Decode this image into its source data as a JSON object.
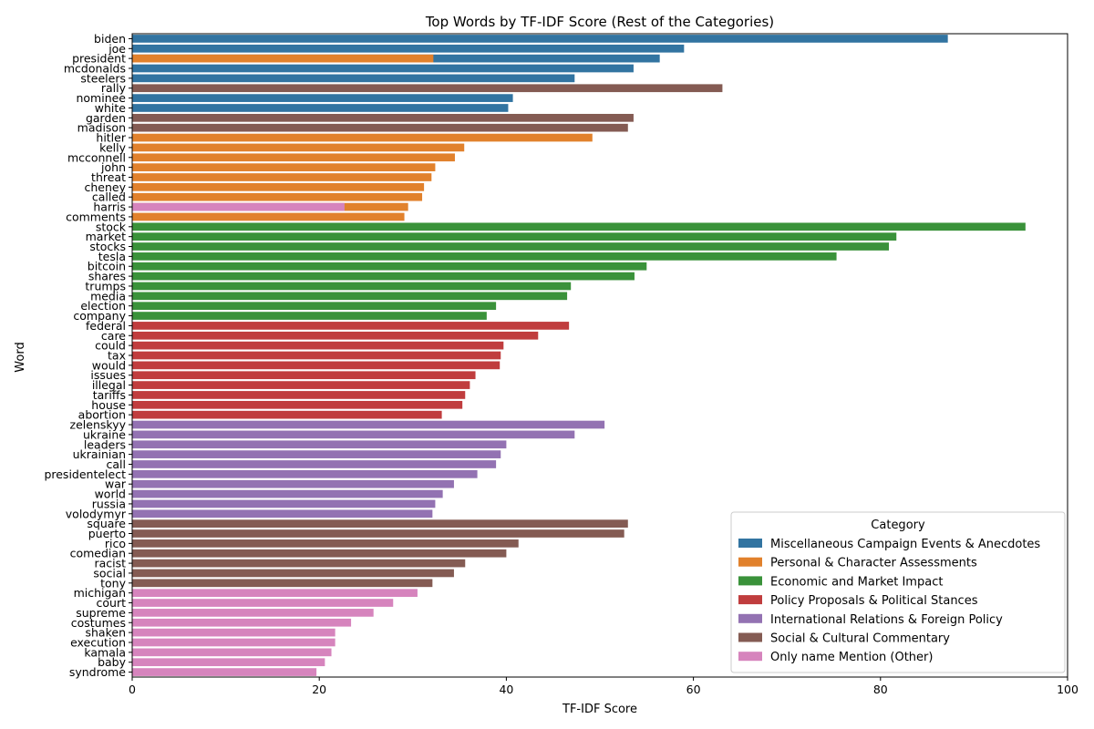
{
  "chart_data": {
    "type": "bar",
    "orientation": "horizontal",
    "title": "Top Words by TF-IDF Score (Rest of the Categories)",
    "xlabel": "TF-IDF Score",
    "ylabel": "Word",
    "xlim": [
      0,
      100
    ],
    "xticks": [
      0,
      20,
      40,
      60,
      80,
      100
    ],
    "grid": false,
    "legend": {
      "title": "Category",
      "placement": "lower-right",
      "entries": [
        {
          "name": "Miscellaneous Campaign Events & Anecdotes",
          "color": "#3274a1"
        },
        {
          "name": "Personal & Character Assessments",
          "color": "#e1812c"
        },
        {
          "name": "Economic and Market Impact",
          "color": "#3a923a"
        },
        {
          "name": "Policy Proposals & Political Stances",
          "color": "#c03d3e"
        },
        {
          "name": "International Relations & Foreign Policy",
          "color": "#9372b2"
        },
        {
          "name": "Social & Cultural Commentary",
          "color": "#845b53"
        },
        {
          "name": "Only name Mention (Other)",
          "color": "#d684bd"
        }
      ]
    },
    "categories": [
      "biden",
      "joe",
      "president",
      "mcdonalds",
      "steelers",
      "rally",
      "nominee",
      "white",
      "garden",
      "madison",
      "hitler",
      "kelly",
      "mcconnell",
      "john",
      "threat",
      "cheney",
      "called",
      "harris",
      "comments",
      "stock",
      "market",
      "stocks",
      "tesla",
      "bitcoin",
      "shares",
      "trumps",
      "media",
      "election",
      "company",
      "federal",
      "care",
      "could",
      "tax",
      "would",
      "issues",
      "illegal",
      "tariffs",
      "house",
      "abortion",
      "zelenskyy",
      "ukraine",
      "leaders",
      "ukrainian",
      "call",
      "presidentelect",
      "war",
      "world",
      "russia",
      "volodymyr",
      "square",
      "puerto",
      "rico",
      "comedian",
      "racist",
      "social",
      "tony",
      "michigan",
      "court",
      "supreme",
      "costumes",
      "shaken",
      "execution",
      "kamala",
      "baby",
      "syndrome"
    ],
    "bars": [
      {
        "word": "biden",
        "value": 87.2,
        "series": 0
      },
      {
        "word": "joe",
        "value": 59.0,
        "series": 0
      },
      {
        "word": "president",
        "value": 56.4,
        "series": 0
      },
      {
        "word": "president",
        "value": 32.2,
        "series": 1
      },
      {
        "word": "mcdonalds",
        "value": 53.6,
        "series": 0
      },
      {
        "word": "steelers",
        "value": 47.3,
        "series": 0
      },
      {
        "word": "rally",
        "value": 63.1,
        "series": 5
      },
      {
        "word": "nominee",
        "value": 40.7,
        "series": 0
      },
      {
        "word": "white",
        "value": 40.2,
        "series": 0
      },
      {
        "word": "garden",
        "value": 53.6,
        "series": 5
      },
      {
        "word": "madison",
        "value": 53.0,
        "series": 5
      },
      {
        "word": "hitler",
        "value": 49.2,
        "series": 1
      },
      {
        "word": "kelly",
        "value": 35.5,
        "series": 1
      },
      {
        "word": "mcconnell",
        "value": 34.5,
        "series": 1
      },
      {
        "word": "john",
        "value": 32.4,
        "series": 1
      },
      {
        "word": "threat",
        "value": 32.0,
        "series": 1
      },
      {
        "word": "cheney",
        "value": 31.2,
        "series": 1
      },
      {
        "word": "called",
        "value": 31.0,
        "series": 1
      },
      {
        "word": "harris",
        "value": 29.5,
        "series": 1
      },
      {
        "word": "harris",
        "value": 22.7,
        "series": 6
      },
      {
        "word": "comments",
        "value": 29.1,
        "series": 1
      },
      {
        "word": "stock",
        "value": 95.5,
        "series": 2
      },
      {
        "word": "market",
        "value": 81.7,
        "series": 2
      },
      {
        "word": "stocks",
        "value": 80.9,
        "series": 2
      },
      {
        "word": "tesla",
        "value": 75.3,
        "series": 2
      },
      {
        "word": "bitcoin",
        "value": 55.0,
        "series": 2
      },
      {
        "word": "shares",
        "value": 53.7,
        "series": 2
      },
      {
        "word": "trumps",
        "value": 46.9,
        "series": 2
      },
      {
        "word": "media",
        "value": 46.5,
        "series": 2
      },
      {
        "word": "election",
        "value": 38.9,
        "series": 2
      },
      {
        "word": "company",
        "value": 37.9,
        "series": 2
      },
      {
        "word": "federal",
        "value": 46.7,
        "series": 3
      },
      {
        "word": "care",
        "value": 43.4,
        "series": 3
      },
      {
        "word": "could",
        "value": 39.7,
        "series": 3
      },
      {
        "word": "tax",
        "value": 39.4,
        "series": 3
      },
      {
        "word": "would",
        "value": 39.3,
        "series": 3
      },
      {
        "word": "issues",
        "value": 36.7,
        "series": 3
      },
      {
        "word": "illegal",
        "value": 36.1,
        "series": 3
      },
      {
        "word": "tariffs",
        "value": 35.6,
        "series": 3
      },
      {
        "word": "house",
        "value": 35.3,
        "series": 3
      },
      {
        "word": "abortion",
        "value": 33.1,
        "series": 3
      },
      {
        "word": "zelenskyy",
        "value": 50.5,
        "series": 4
      },
      {
        "word": "ukraine",
        "value": 47.3,
        "series": 4
      },
      {
        "word": "leaders",
        "value": 40.0,
        "series": 4
      },
      {
        "word": "ukrainian",
        "value": 39.4,
        "series": 4
      },
      {
        "word": "call",
        "value": 38.9,
        "series": 4
      },
      {
        "word": "presidentelect",
        "value": 36.9,
        "series": 4
      },
      {
        "word": "war",
        "value": 34.4,
        "series": 4
      },
      {
        "word": "world",
        "value": 33.2,
        "series": 4
      },
      {
        "word": "russia",
        "value": 32.4,
        "series": 4
      },
      {
        "word": "volodymyr",
        "value": 32.1,
        "series": 4
      },
      {
        "word": "square",
        "value": 53.0,
        "series": 5
      },
      {
        "word": "puerto",
        "value": 52.6,
        "series": 5
      },
      {
        "word": "rico",
        "value": 41.3,
        "series": 5
      },
      {
        "word": "comedian",
        "value": 40.0,
        "series": 5
      },
      {
        "word": "racist",
        "value": 35.6,
        "series": 5
      },
      {
        "word": "social",
        "value": 34.4,
        "series": 5
      },
      {
        "word": "tony",
        "value": 32.1,
        "series": 5
      },
      {
        "word": "michigan",
        "value": 30.5,
        "series": 6
      },
      {
        "word": "court",
        "value": 27.9,
        "series": 6
      },
      {
        "word": "supreme",
        "value": 25.8,
        "series": 6
      },
      {
        "word": "costumes",
        "value": 23.4,
        "series": 6
      },
      {
        "word": "shaken",
        "value": 21.7,
        "series": 6
      },
      {
        "word": "execution",
        "value": 21.7,
        "series": 6
      },
      {
        "word": "kamala",
        "value": 21.3,
        "series": 6
      },
      {
        "word": "baby",
        "value": 20.6,
        "series": 6
      },
      {
        "word": "syndrome",
        "value": 19.7,
        "series": 6
      }
    ]
  }
}
